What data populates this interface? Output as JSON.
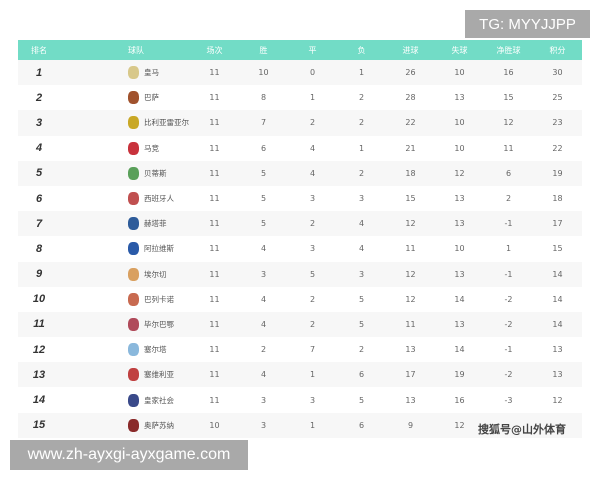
{
  "headers": [
    "排名",
    "球队",
    "场次",
    "胜",
    "平",
    "负",
    "进球",
    "失球",
    "净胜球",
    "积分"
  ],
  "rows": [
    {
      "rank": "1",
      "team": "皇马",
      "logo_color": "#d8c88a",
      "p": "11",
      "w": "10",
      "d": "0",
      "l": "1",
      "gf": "26",
      "ga": "10",
      "gd": "16",
      "pts": "30"
    },
    {
      "rank": "2",
      "team": "巴萨",
      "logo_color": "#a0522d",
      "p": "11",
      "w": "8",
      "d": "1",
      "l": "2",
      "gf": "28",
      "ga": "13",
      "gd": "15",
      "pts": "25"
    },
    {
      "rank": "3",
      "team": "比利亚雷亚尔",
      "logo_color": "#c9a826",
      "p": "11",
      "w": "7",
      "d": "2",
      "l": "2",
      "gf": "22",
      "ga": "10",
      "gd": "12",
      "pts": "23"
    },
    {
      "rank": "4",
      "team": "马竞",
      "logo_color": "#c8323c",
      "p": "11",
      "w": "6",
      "d": "4",
      "l": "1",
      "gf": "21",
      "ga": "10",
      "gd": "11",
      "pts": "22"
    },
    {
      "rank": "5",
      "team": "贝蒂斯",
      "logo_color": "#5aa05a",
      "p": "11",
      "w": "5",
      "d": "4",
      "l": "2",
      "gf": "18",
      "ga": "12",
      "gd": "6",
      "pts": "19"
    },
    {
      "rank": "6",
      "team": "西班牙人",
      "logo_color": "#c05050",
      "p": "11",
      "w": "5",
      "d": "3",
      "l": "3",
      "gf": "15",
      "ga": "13",
      "gd": "2",
      "pts": "18"
    },
    {
      "rank": "7",
      "team": "赫塔菲",
      "logo_color": "#2e5c9a",
      "p": "11",
      "w": "5",
      "d": "2",
      "l": "4",
      "gf": "12",
      "ga": "13",
      "gd": "-1",
      "pts": "17"
    },
    {
      "rank": "8",
      "team": "阿拉维斯",
      "logo_color": "#2a5aa8",
      "p": "11",
      "w": "4",
      "d": "3",
      "l": "4",
      "gf": "11",
      "ga": "10",
      "gd": "1",
      "pts": "15"
    },
    {
      "rank": "9",
      "team": "埃尔切",
      "logo_color": "#d9a060",
      "p": "11",
      "w": "3",
      "d": "5",
      "l": "3",
      "gf": "12",
      "ga": "13",
      "gd": "-1",
      "pts": "14"
    },
    {
      "rank": "10",
      "team": "巴列卡诺",
      "logo_color": "#c86a50",
      "p": "11",
      "w": "4",
      "d": "2",
      "l": "5",
      "gf": "12",
      "ga": "14",
      "gd": "-2",
      "pts": "14"
    },
    {
      "rank": "11",
      "team": "毕尔巴鄂",
      "logo_color": "#b04a5a",
      "p": "11",
      "w": "4",
      "d": "2",
      "l": "5",
      "gf": "11",
      "ga": "13",
      "gd": "-2",
      "pts": "14"
    },
    {
      "rank": "12",
      "team": "塞尔塔",
      "logo_color": "#8ab8dc",
      "p": "11",
      "w": "2",
      "d": "7",
      "l": "2",
      "gf": "13",
      "ga": "14",
      "gd": "-1",
      "pts": "13"
    },
    {
      "rank": "13",
      "team": "塞维利亚",
      "logo_color": "#c04040",
      "p": "11",
      "w": "4",
      "d": "1",
      "l": "6",
      "gf": "17",
      "ga": "19",
      "gd": "-2",
      "pts": "13"
    },
    {
      "rank": "14",
      "team": "皇家社会",
      "logo_color": "#3a4a8a",
      "p": "11",
      "w": "3",
      "d": "3",
      "l": "5",
      "gf": "13",
      "ga": "16",
      "gd": "-3",
      "pts": "12"
    },
    {
      "rank": "15",
      "team": "奥萨苏纳",
      "logo_color": "#8a2a2a",
      "p": "10",
      "w": "3",
      "d": "1",
      "l": "6",
      "gf": "9",
      "ga": "12",
      "gd": "",
      "pts": ""
    }
  ],
  "watermarks": {
    "top_right": "TG: MYYJJPP",
    "bottom_left": "www.zh-ayxgi-ayxgame.com",
    "source": "搜狐号@山外体育"
  },
  "colors": {
    "header_bg": "#72dcc6"
  }
}
